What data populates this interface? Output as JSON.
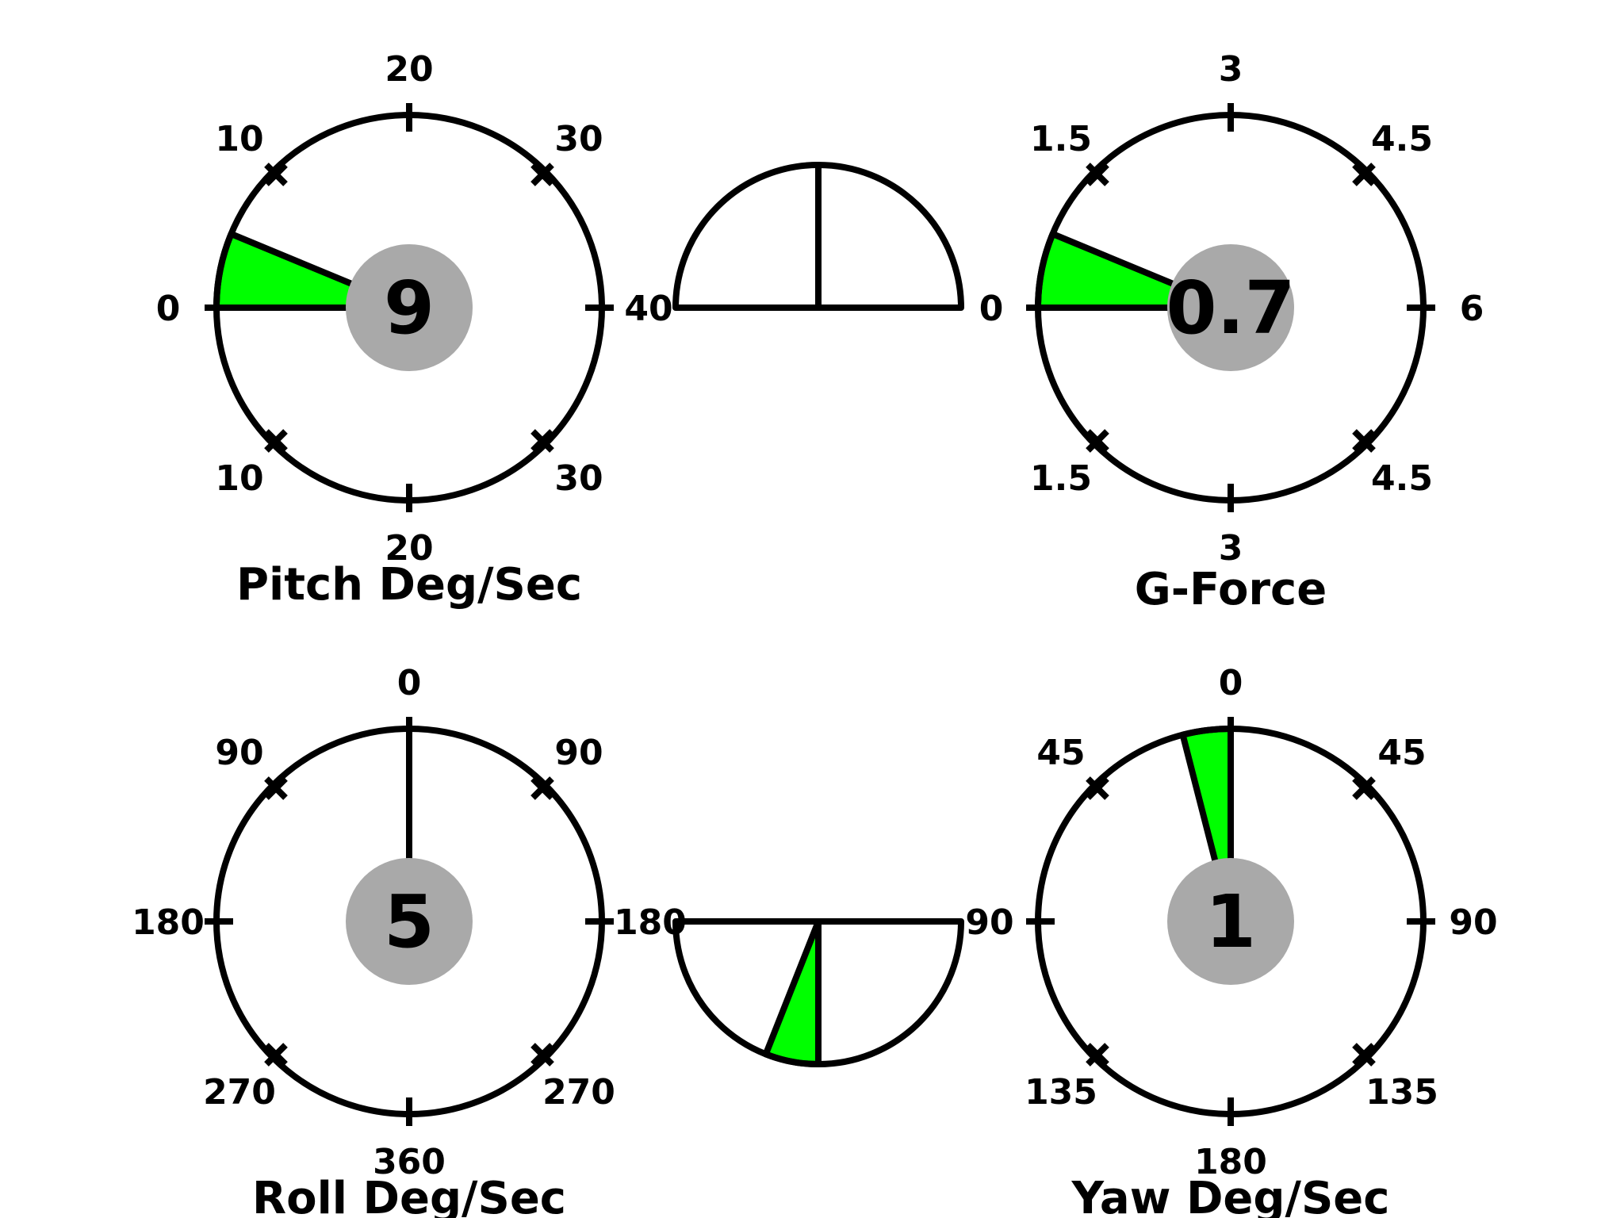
{
  "colors": {
    "needle_fill": "#00ff00",
    "hub_fill": "#a9a9a9",
    "stroke": "#000000",
    "background": "#ffffff"
  },
  "gauges": [
    {
      "id": "pitch",
      "title": "Pitch Deg/Sec",
      "readout": "9",
      "ticks": {
        "top": "20",
        "top_left": "10",
        "top_right": "30",
        "left": "0",
        "right": "40",
        "bottom_left": "10",
        "bottom_right": "30",
        "bottom": "20"
      },
      "needle": {
        "fraction_from_left": 0.0625
      }
    },
    {
      "id": "gforce",
      "title": "G-Force",
      "readout": "0.7",
      "ticks": {
        "top": "3",
        "top_left": "1.5",
        "top_right": "4.5",
        "left": "0",
        "right": "6",
        "bottom_left": "1.5",
        "bottom_right": "4.5",
        "bottom": "3"
      },
      "needle": {
        "fraction_from_left": 0.0625
      }
    },
    {
      "id": "roll",
      "title": "Roll Deg/Sec",
      "readout": "5",
      "ticks": {
        "top": "0",
        "top_left": "90",
        "top_right": "90",
        "left": "180",
        "right": "180",
        "bottom_left": "270",
        "bottom_right": "270",
        "bottom": "360"
      },
      "needle": {
        "fraction_from_top": 0.0
      }
    },
    {
      "id": "yaw",
      "title": "Yaw Deg/Sec",
      "readout": "1",
      "ticks": {
        "top": "0",
        "top_left": "45",
        "top_right": "45",
        "left": "90",
        "right": "90",
        "bottom_left": "135",
        "bottom_right": "135",
        "bottom": "180"
      },
      "needle": {
        "fraction_from_top": 0.04
      }
    }
  ],
  "semi_gauges": [
    {
      "id": "upper-semi",
      "orientation": "up",
      "needle_fraction_from_center": 0.0
    },
    {
      "id": "lower-semi",
      "orientation": "down",
      "needle_fraction_from_center": 0.12
    }
  ]
}
